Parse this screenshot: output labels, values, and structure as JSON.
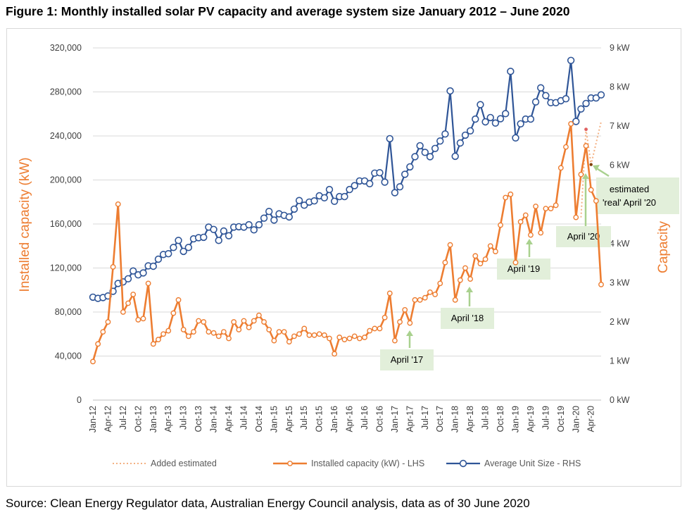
{
  "title": "Figure 1: Monthly installed solar PV capacity and average system size January 2012 – June 2020",
  "source": "Source: Clean Energy Regulator data, Australian Energy Council analysis, data as of 30 June 2020",
  "colors": {
    "capacity": "#ed7d31",
    "unit_size": "#2f5597",
    "estimated": "#f4b183",
    "annot_box": "#e2efda",
    "annot_arrow": "#a9d18e",
    "grid": "#d9d9d9"
  },
  "chart_data": {
    "type": "line",
    "title": "Figure 1: Monthly installed solar PV capacity and average system size January 2012 – June 2020",
    "ylabel_left": "Installed capacity (kW)",
    "ylabel_right": "Capacity",
    "ylim_left": [
      0,
      320000
    ],
    "ylim_right": [
      0,
      9
    ],
    "yticks_left": [
      "0",
      "40,000",
      "80,000",
      "120,000",
      "160,000",
      "200,000",
      "240,000",
      "280,000",
      "320,000"
    ],
    "yticks_right": [
      "0 kW",
      "1 kW",
      "2 kW",
      "3 kW",
      "4 kW",
      "5 kW",
      "6 kW",
      "7 kW",
      "8 kW",
      "9 kW"
    ],
    "x": [
      "Jan-12",
      "Feb-12",
      "Mar-12",
      "Apr-12",
      "May-12",
      "Jun-12",
      "Jul-12",
      "Aug-12",
      "Sep-12",
      "Oct-12",
      "Nov-12",
      "Dec-12",
      "Jan-13",
      "Feb-13",
      "Mar-13",
      "Apr-13",
      "May-13",
      "Jun-13",
      "Jul-13",
      "Aug-13",
      "Sep-13",
      "Oct-13",
      "Nov-13",
      "Dec-13",
      "Jan-14",
      "Feb-14",
      "Mar-14",
      "Apr-14",
      "May-14",
      "Jun-14",
      "Jul-14",
      "Aug-14",
      "Sep-14",
      "Oct-14",
      "Nov-14",
      "Dec-14",
      "Jan-15",
      "Feb-15",
      "Mar-15",
      "Apr-15",
      "May-15",
      "Jun-15",
      "Jul-15",
      "Aug-15",
      "Sep-15",
      "Oct-15",
      "Nov-15",
      "Dec-15",
      "Jan-16",
      "Feb-16",
      "Mar-16",
      "Apr-16",
      "May-16",
      "Jun-16",
      "Jul-16",
      "Aug-16",
      "Sep-16",
      "Oct-16",
      "Nov-16",
      "Dec-16",
      "Jan-17",
      "Feb-17",
      "Mar-17",
      "Apr-17",
      "May-17",
      "Jun-17",
      "Jul-17",
      "Aug-17",
      "Sep-17",
      "Oct-17",
      "Nov-17",
      "Dec-17",
      "Jan-18",
      "Feb-18",
      "Mar-18",
      "Apr-18",
      "May-18",
      "Jun-18",
      "Jul-18",
      "Aug-18",
      "Sep-18",
      "Oct-18",
      "Nov-18",
      "Dec-18",
      "Jan-19",
      "Feb-19",
      "Mar-19",
      "Apr-19",
      "May-19",
      "Jun-19",
      "Jul-19",
      "Aug-19",
      "Sep-19",
      "Oct-19",
      "Nov-19",
      "Dec-19",
      "Jan-20",
      "Feb-20",
      "Mar-20",
      "Apr-20",
      "May-20",
      "Jun-20"
    ],
    "x_tick_labels": [
      "Jan-12",
      "Apr-12",
      "Jul-12",
      "Oct-12",
      "Jan-13",
      "Apr-13",
      "Jul-13",
      "Oct-13",
      "Jan-14",
      "Apr-14",
      "Jul-14",
      "Oct-14",
      "Jan-15",
      "Apr-15",
      "Jul-15",
      "Oct-15",
      "Jan-16",
      "Apr-16",
      "Jul-16",
      "Oct-16",
      "Jan-17",
      "Apr-17",
      "Jul-17",
      "Oct-17",
      "Jan-18",
      "Apr-18",
      "Jul-18",
      "Oct-18",
      "Jan-19",
      "Apr-19",
      "Jul-19",
      "Oct-19",
      "Jan-20",
      "Apr-20"
    ],
    "series": [
      {
        "name": "Installed capacity (kW) - LHS",
        "axis": "left",
        "values": [
          35000,
          51000,
          62000,
          71000,
          121000,
          178000,
          80000,
          88000,
          96000,
          73000,
          74000,
          106000,
          51000,
          55000,
          60000,
          63000,
          79000,
          91000,
          64000,
          58000,
          62000,
          72000,
          71000,
          62000,
          61000,
          58000,
          62000,
          56000,
          71000,
          64000,
          72000,
          66000,
          72000,
          77000,
          71000,
          64000,
          54000,
          62000,
          62000,
          53000,
          58000,
          60000,
          65000,
          59000,
          59000,
          60000,
          59000,
          56000,
          42000,
          57000,
          55000,
          56000,
          58000,
          56000,
          57000,
          63000,
          65000,
          65000,
          75000,
          97000,
          54000,
          71000,
          82000,
          70000,
          91000,
          91000,
          93000,
          98000,
          96000,
          106000,
          125000,
          141000,
          91000,
          109000,
          120000,
          110000,
          131000,
          124000,
          128000,
          140000,
          135000,
          159000,
          184000,
          187000,
          125000,
          162000,
          168000,
          150000,
          176000,
          152000,
          174000,
          174000,
          177000,
          211000,
          230000,
          251000,
          166000,
          205000,
          231000,
          191000,
          181000,
          105000
        ]
      },
      {
        "name": "Average Unit Size - RHS",
        "axis": "right",
        "values": [
          2.63,
          2.6,
          2.62,
          2.66,
          2.78,
          2.98,
          3.02,
          3.1,
          3.3,
          3.2,
          3.25,
          3.43,
          3.42,
          3.6,
          3.72,
          3.74,
          3.9,
          4.08,
          3.8,
          3.9,
          4.12,
          4.15,
          4.16,
          4.42,
          4.36,
          4.08,
          4.32,
          4.2,
          4.42,
          4.43,
          4.42,
          4.48,
          4.35,
          4.48,
          4.65,
          4.82,
          4.6,
          4.76,
          4.72,
          4.68,
          4.88,
          5.1,
          4.98,
          5.06,
          5.09,
          5.22,
          5.17,
          5.38,
          5.08,
          5.2,
          5.2,
          5.38,
          5.48,
          5.6,
          5.6,
          5.53,
          5.8,
          5.81,
          5.57,
          6.68,
          5.3,
          5.45,
          5.77,
          5.96,
          6.22,
          6.5,
          6.33,
          6.22,
          6.43,
          6.62,
          6.8,
          7.9,
          6.23,
          6.57,
          6.77,
          6.88,
          7.18,
          7.55,
          7.11,
          7.22,
          7.08,
          7.19,
          7.32,
          8.4,
          6.7,
          7.06,
          7.18,
          7.18,
          7.62,
          7.98,
          7.78,
          7.6,
          7.6,
          7.65,
          7.7,
          8.68,
          7.12,
          7.44,
          7.58,
          7.72,
          7.72,
          7.8
        ]
      },
      {
        "name": "Added estimated",
        "axis": "left",
        "style": "dotted",
        "points": [
          [
            97,
            166000
          ],
          [
            98,
            246000
          ],
          [
            99,
            214000
          ],
          [
            101,
            253000
          ]
        ]
      }
    ],
    "legend": [
      "Added estimated",
      "Installed capacity (kW) - LHS",
      "Average Unit Size - RHS"
    ],
    "legend_position": "bottom",
    "annotations": [
      {
        "text": "April '17",
        "target": 63
      },
      {
        "text": "April '18",
        "target": 75
      },
      {
        "text": "April '19",
        "target": 87
      },
      {
        "text": "April '20",
        "target": 99
      },
      {
        "text": "estimated 'real' April '20",
        "lines": [
          "estimated",
          "'real' April '20"
        ],
        "target": 99
      }
    ]
  }
}
